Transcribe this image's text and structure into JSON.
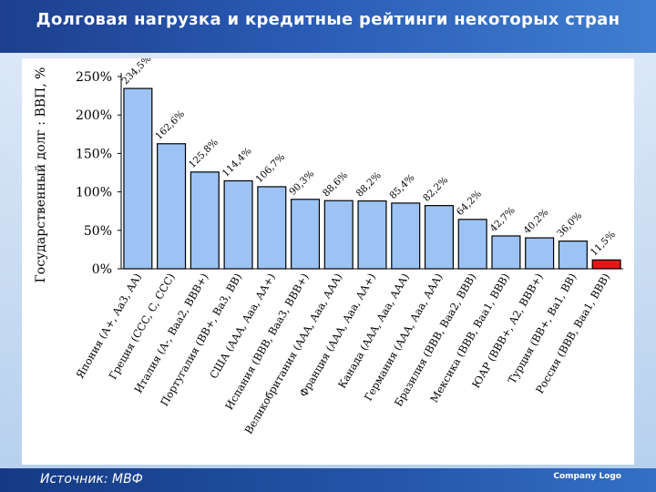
{
  "slide": {
    "title": "Долговая нагрузка и кредитные рейтинги некоторых стран",
    "source": "Источник: МВФ",
    "company": "Company Logo"
  },
  "chart_data": {
    "type": "bar",
    "ylabel": "Государственный долг : ВВП, %",
    "ylim": [
      0,
      250
    ],
    "yticks": [
      0,
      50,
      100,
      150,
      200,
      250
    ],
    "ytick_labels": [
      "0%",
      "50%",
      "100%",
      "150%",
      "200%",
      "250%"
    ],
    "grid": false,
    "categories": [
      "Япония (A+, Aa3, AA)",
      "Греция (CCC, C, CCC)",
      "Италия (A-, Baa2, BBB+)",
      "Португалия (BB+, Ba3, BB)",
      "США (AAA, Aaa, AA+)",
      "Испания (BBB, Baa3, BBB+)",
      "Великобритания (AAA, Aaa, AAA)",
      "Франция (AAA, Aaa, AA+)",
      "Канада (AAA, Aaa, AAA)",
      "Германия (AAA, Aaa, AAA)",
      "Бразилия (BBB, Baa2, BBB)",
      "Мексика (BBB, Baa1, BBB)",
      "ЮАР (BBB+, A2, BBB+)",
      "Турция (BB+, Ba1, BB)",
      "Россия (BBB, Baa1, BBB)"
    ],
    "values": [
      234.5,
      162.6,
      125.8,
      114.4,
      106.7,
      90.3,
      88.6,
      88.2,
      85.4,
      82.2,
      64.2,
      42.7,
      40.2,
      36.0,
      11.5
    ],
    "value_labels": [
      "234,5%",
      "162,6%",
      "125,8%",
      "114,4%",
      "106,7%",
      "90,3%",
      "88,6%",
      "88,2%",
      "85,4%",
      "82,2%",
      "64,2%",
      "42,7%",
      "40,2%",
      "36,0%",
      "11,5%"
    ],
    "colors": {
      "bar": "#9cc3f4",
      "highlight": "#e01818",
      "highlight_index": 14,
      "bar_stroke": "#000000"
    }
  }
}
